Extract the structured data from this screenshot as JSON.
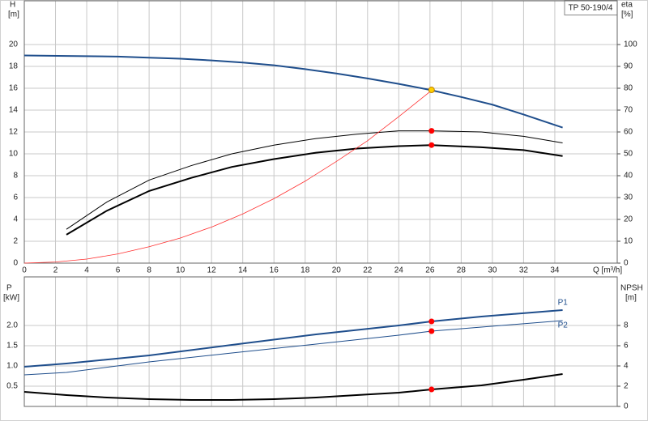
{
  "chart_data": [
    {
      "type": "line",
      "legend_title": "TP 50-190/4",
      "ylabel": "H",
      "ylabel_unit": "[m]",
      "y2label": "eta",
      "y2label_unit": "[%]",
      "xlabel": "Q [m³/h]",
      "xlim": [
        0,
        38
      ],
      "xticks": [
        0,
        2,
        4,
        6,
        8,
        10,
        12,
        14,
        16,
        18,
        20,
        22,
        24,
        26,
        28,
        30,
        32,
        34
      ],
      "ylim": [
        0,
        24
      ],
      "yticks": [
        0,
        2,
        4,
        6,
        8,
        10,
        12,
        14,
        16,
        18,
        20
      ],
      "y2lim": [
        0,
        120
      ],
      "y2ticks": [
        0,
        10,
        20,
        30,
        40,
        50,
        60,
        70,
        80,
        90,
        100
      ],
      "grid": true,
      "series": [
        {
          "color": "#1f4e8c",
          "line_width": 2,
          "x": [
            0,
            2.7,
            6,
            8,
            10,
            12,
            14,
            16,
            18,
            20,
            22,
            24,
            26,
            28,
            30,
            32,
            34.5
          ],
          "values": [
            19.0,
            18.95,
            18.9,
            18.8,
            18.7,
            18.55,
            18.35,
            18.1,
            17.75,
            17.35,
            16.9,
            16.4,
            15.85,
            15.2,
            14.5,
            13.6,
            12.4
          ]
        },
        {
          "color": "#000000",
          "line_width": 1,
          "axis": "y2",
          "x": [
            2.7,
            5.3,
            8,
            10.7,
            13.3,
            16,
            18.7,
            21.3,
            24,
            26.1,
            29.3,
            32,
            34.5
          ],
          "values": [
            15.5,
            28,
            38,
            44.6,
            50,
            54,
            57,
            59,
            60.5,
            60.5,
            60,
            58,
            55
          ]
        },
        {
          "color": "#000000",
          "line_width": 2,
          "axis": "y2",
          "x": [
            2.7,
            5.3,
            8,
            10.7,
            13.3,
            16,
            18.7,
            21.3,
            24,
            26.1,
            29.3,
            32,
            34.5
          ],
          "values": [
            13,
            24,
            33,
            39,
            44,
            47.6,
            50.5,
            52.4,
            53.5,
            54,
            53,
            51.7,
            49
          ]
        },
        {
          "color": "#ff3030",
          "line_width": 0.8,
          "x": [
            0,
            2,
            4,
            6,
            8,
            10,
            12,
            14,
            16,
            18,
            20,
            22,
            24,
            26.1
          ],
          "values": [
            0,
            0.1,
            0.37,
            0.84,
            1.5,
            2.3,
            3.3,
            4.5,
            5.9,
            7.5,
            9.3,
            11.2,
            13.4,
            15.8
          ]
        }
      ],
      "points": [
        {
          "x": 26.1,
          "y": 15.85,
          "color": "#ffd000"
        },
        {
          "x": 26.1,
          "y": 60.5,
          "color": "#ff0000",
          "axis": "y2"
        },
        {
          "x": 26.1,
          "y": 54,
          "color": "#ff0000",
          "axis": "y2"
        }
      ]
    },
    {
      "type": "line",
      "ylabel": "P",
      "ylabel_unit": "[kW]",
      "y2label": "NPSH",
      "y2label_unit": "[m]",
      "xlim": [
        0,
        38
      ],
      "xticks": [
        0,
        2,
        4,
        6,
        8,
        10,
        12,
        14,
        16,
        18,
        20,
        22,
        24,
        26,
        28,
        30,
        32,
        34
      ],
      "ylim": [
        0,
        3.2
      ],
      "yticks": [
        0.5,
        {
          "value": 1,
          "label": "1.0"
        },
        1.5,
        {
          "value": 2,
          "label": "2.0"
        }
      ],
      "y2lim": [
        0,
        12.8
      ],
      "y2ticks": [
        0,
        2,
        4,
        6,
        8
      ],
      "grid": true,
      "series": [
        {
          "name": "P1",
          "color": "#1f4e8c",
          "line_width": 2,
          "x": [
            0,
            2.7,
            8,
            13.3,
            18.7,
            24,
            26.1,
            29.3,
            34.5
          ],
          "values": [
            0.98,
            1.06,
            1.26,
            1.52,
            1.78,
            2.0,
            2.1,
            2.22,
            2.38
          ]
        },
        {
          "name": "P2",
          "color": "#1f4e8c",
          "line_width": 1,
          "x": [
            0,
            2.7,
            8,
            13.3,
            18.7,
            24,
            26.1,
            29.3,
            34.5
          ],
          "values": [
            0.78,
            0.84,
            1.1,
            1.32,
            1.54,
            1.76,
            1.86,
            1.96,
            2.12
          ]
        },
        {
          "color": "#000000",
          "line_width": 2,
          "axis": "y2",
          "x": [
            0,
            2.7,
            5.3,
            8,
            10.7,
            13.3,
            16,
            18.7,
            21.3,
            24,
            26.1,
            29.3,
            32,
            34.5
          ],
          "values": [
            1.44,
            1.12,
            0.88,
            0.72,
            0.64,
            0.64,
            0.72,
            0.88,
            1.12,
            1.36,
            1.68,
            2.08,
            2.64,
            3.2
          ]
        }
      ],
      "points": [
        {
          "x": 26.1,
          "y": 2.1,
          "color": "#ff0000"
        },
        {
          "x": 26.1,
          "y": 1.86,
          "color": "#ff0000"
        },
        {
          "x": 26.1,
          "y": 1.68,
          "color": "#ff0000",
          "axis": "y2"
        }
      ]
    }
  ]
}
